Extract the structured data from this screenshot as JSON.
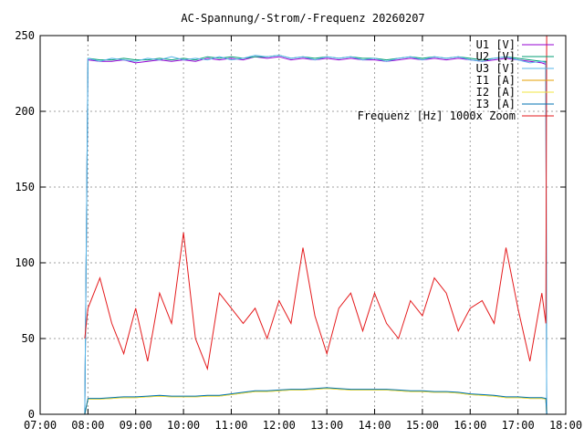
{
  "chart_data": {
    "type": "line",
    "title": "AC-Spannung/-Strom/-Frequenz 20260207",
    "xlabel": "",
    "ylabel": "",
    "xlim": [
      "07:00",
      "18:00"
    ],
    "ylim": [
      0,
      250
    ],
    "x_ticks": [
      "07:00",
      "08:00",
      "09:00",
      "10:00",
      "11:00",
      "12:00",
      "13:00",
      "14:00",
      "15:00",
      "16:00",
      "17:00",
      "18:00"
    ],
    "y_ticks": [
      0,
      50,
      100,
      150,
      200,
      250
    ],
    "grid": true,
    "legend_position": "top-right",
    "x": [
      "07:56",
      "08:00",
      "08:15",
      "08:30",
      "08:45",
      "09:00",
      "09:15",
      "09:30",
      "09:45",
      "10:00",
      "10:15",
      "10:30",
      "10:45",
      "11:00",
      "11:15",
      "11:30",
      "11:45",
      "12:00",
      "12:15",
      "12:30",
      "12:45",
      "13:00",
      "13:15",
      "13:30",
      "13:45",
      "14:00",
      "14:15",
      "14:30",
      "14:45",
      "15:00",
      "15:15",
      "15:30",
      "15:45",
      "16:00",
      "16:15",
      "16:30",
      "16:45",
      "17:00",
      "17:15",
      "17:30",
      "17:35",
      "17:36"
    ],
    "series": [
      {
        "name": "U1 [V]",
        "color": "#9400d3",
        "values": [
          0,
          234,
          233,
          233,
          234,
          232,
          233,
          234,
          233,
          234,
          233,
          235,
          234,
          235,
          234,
          236,
          235,
          236,
          234,
          235,
          234,
          235,
          234,
          235,
          234,
          234,
          233,
          234,
          235,
          234,
          235,
          234,
          235,
          234,
          233,
          234,
          235,
          234,
          233,
          232,
          231,
          0
        ]
      },
      {
        "name": "U2 [V]",
        "color": "#009e73",
        "values": [
          0,
          235,
          234,
          234,
          235,
          234,
          234,
          235,
          234,
          235,
          234,
          236,
          235,
          236,
          235,
          236,
          236,
          237,
          235,
          236,
          235,
          236,
          235,
          236,
          235,
          235,
          234,
          235,
          236,
          235,
          236,
          235,
          236,
          235,
          234,
          235,
          236,
          235,
          234,
          233,
          233,
          0
        ]
      },
      {
        "name": "U3 [V]",
        "color": "#56b4e9",
        "values": [
          0,
          235,
          233,
          235,
          234,
          233,
          235,
          234,
          236,
          234,
          235,
          234,
          236,
          234,
          235,
          237,
          236,
          237,
          235,
          236,
          234,
          236,
          235,
          236,
          234,
          235,
          233,
          235,
          236,
          234,
          236,
          235,
          236,
          234,
          233,
          235,
          236,
          234,
          232,
          233,
          232,
          0
        ]
      },
      {
        "name": "I1 [A]",
        "color": "#e69f00",
        "values": [
          0,
          10,
          10,
          10.5,
          11,
          11,
          11.5,
          12,
          11.5,
          11.5,
          11.5,
          12,
          12,
          13,
          14,
          15,
          15,
          15.5,
          16,
          16,
          16.5,
          17,
          16.5,
          16,
          16,
          16,
          16,
          15.5,
          15,
          15,
          14.5,
          14.5,
          14,
          13,
          12.5,
          12,
          11,
          11,
          10.5,
          10.5,
          10,
          0
        ]
      },
      {
        "name": "I2 [A]",
        "color": "#f0e442",
        "values": [
          0,
          10,
          10,
          10.5,
          11,
          11,
          11.5,
          12,
          11.5,
          11.5,
          11.5,
          12,
          12,
          13,
          14,
          15,
          15,
          15.5,
          16,
          16,
          16.5,
          17,
          16.5,
          16,
          16,
          16,
          16,
          15.5,
          15,
          15,
          14.5,
          14.5,
          14,
          13,
          12.5,
          12,
          11,
          11,
          10.5,
          10.5,
          10,
          0
        ]
      },
      {
        "name": "I3 [A]",
        "color": "#0072b2",
        "values": [
          0,
          10.5,
          10.5,
          11,
          11.5,
          11.5,
          12,
          12.5,
          12,
          12,
          12,
          12.5,
          12.5,
          13.5,
          14.5,
          15.5,
          15.5,
          16,
          16.5,
          16.5,
          17,
          17.5,
          17,
          16.5,
          16.5,
          16.5,
          16.5,
          16,
          15.5,
          15.5,
          15,
          15,
          14.5,
          13.5,
          13,
          12.5,
          11.5,
          11.5,
          11,
          11,
          10.5,
          0
        ]
      },
      {
        "name": "Frequenz [Hz] 1000x Zoom",
        "color": "#e41a1c",
        "values": [
          50,
          70,
          90,
          60,
          40,
          70,
          35,
          80,
          60,
          120,
          50,
          30,
          80,
          70,
          60,
          70,
          50,
          75,
          60,
          110,
          65,
          40,
          70,
          80,
          55,
          80,
          60,
          50,
          75,
          65,
          90,
          80,
          55,
          70,
          75,
          60,
          110,
          70,
          35,
          80,
          60,
          250
        ]
      }
    ]
  }
}
